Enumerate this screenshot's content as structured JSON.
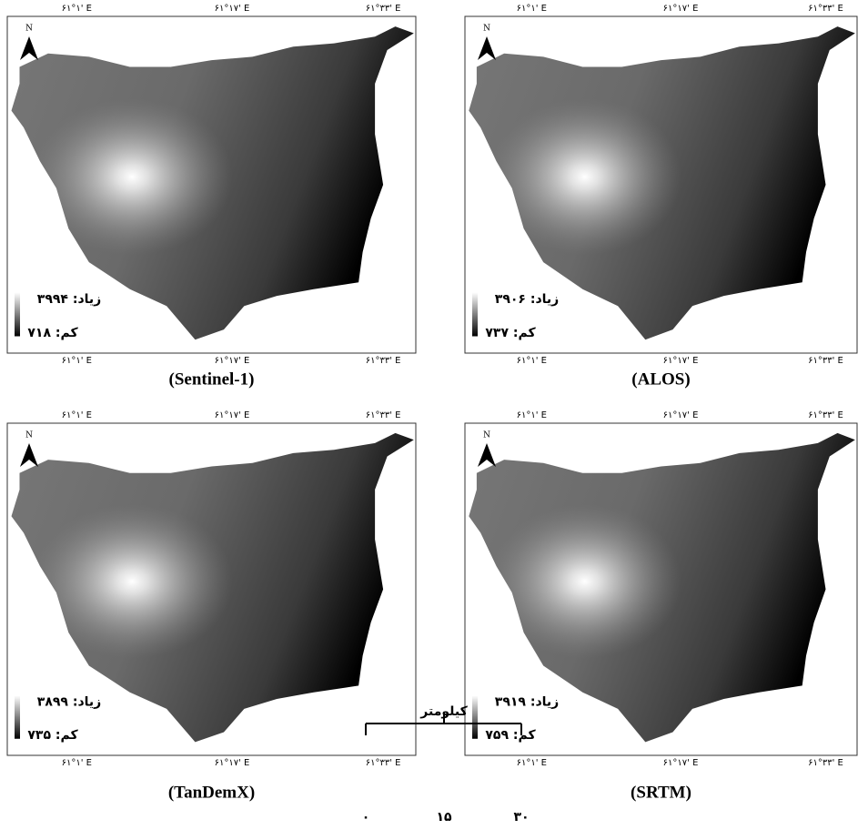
{
  "panels": [
    {
      "top_labels": [
        "۶۱°۱' E",
        "۶۱°۱۷' E",
        "۶۱°۳۳' E"
      ],
      "bottom_labels": [
        "۶۱°۱' E",
        "۶۱°۱۷' E",
        "۶۱°۳۳' E"
      ],
      "north": "N",
      "legend_high": "زیاد: ۳۹۹۴",
      "legend_low": "کم: ۷۱۸",
      "caption": "(Sentinel-1)"
    },
    {
      "top_labels": [
        "۶۱°۱' E",
        "۶۱°۱۷' E",
        "۶۱°۳۳' E"
      ],
      "bottom_labels": [
        "۶۱°۱' E",
        "۶۱°۱۷' E",
        "۶۱°۳۳' E"
      ],
      "north": "N",
      "legend_high": "زیاد: ۳۹۰۶",
      "legend_low": "کم: ۷۳۷",
      "caption": "(ALOS)"
    },
    {
      "top_labels": [
        "۶۱°۱' E",
        "۶۱°۱۷' E",
        "۶۱°۳۳' E"
      ],
      "bottom_labels": [
        "۶۱°۱' E",
        "۶۱°۱۷' E",
        "۶۱°۳۳' E"
      ],
      "north": "N",
      "legend_high": "زیاد: ۳۸۹۹",
      "legend_low": "کم: ۷۳۵",
      "caption": "(TanDemX)"
    },
    {
      "top_labels": [
        "۶۱°۱' E",
        "۶۱°۱۷' E",
        "۶۱°۳۳' E"
      ],
      "bottom_labels": [
        "۶۱°۱' E",
        "۶۱°۱۷' E",
        "۶۱°۳۳' E"
      ],
      "north": "N",
      "legend_high": "زیاد: ۳۹۱۹",
      "legend_low": "کم: ۷۵۹",
      "caption": "(SRTM)"
    }
  ],
  "scale_bar": {
    "title": "کیلومتر",
    "ticks": [
      "۰",
      "۱۵",
      "۳۰"
    ]
  }
}
